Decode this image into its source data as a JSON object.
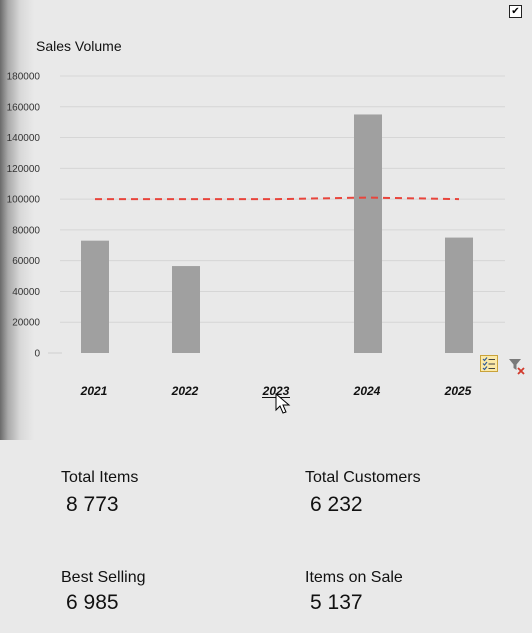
{
  "header": {
    "checkbox_glyph": "✔"
  },
  "chart_data": {
    "type": "bar",
    "title": "Sales Volume",
    "categories": [
      "2021",
      "2022",
      "2023",
      "2024",
      "2025"
    ],
    "values": [
      73000,
      56500,
      0,
      155000,
      75000
    ],
    "yticks": [
      "180000",
      "160000",
      "140000",
      "120000",
      "100000",
      "80000",
      "60000",
      "40000",
      "20000",
      "0"
    ],
    "ylim": [
      0,
      180000
    ],
    "target_line": [
      100000,
      100000,
      100000,
      101000,
      100000
    ],
    "bar_color": "#a0a0a0",
    "target_color": "#e8453c",
    "grid": true
  },
  "kpis": {
    "total_items": {
      "label": "Total Items",
      "value": "8 773"
    },
    "total_customers": {
      "label": "Total Customers",
      "value": "6 232"
    },
    "best_selling": {
      "label": "Best Selling",
      "value": "6 985"
    },
    "items_on_sale": {
      "label": "Items on Sale",
      "value": "5 137"
    }
  },
  "icons": {
    "multi_select": "checklist-icon",
    "clear_filter": "clear-filter-icon"
  }
}
